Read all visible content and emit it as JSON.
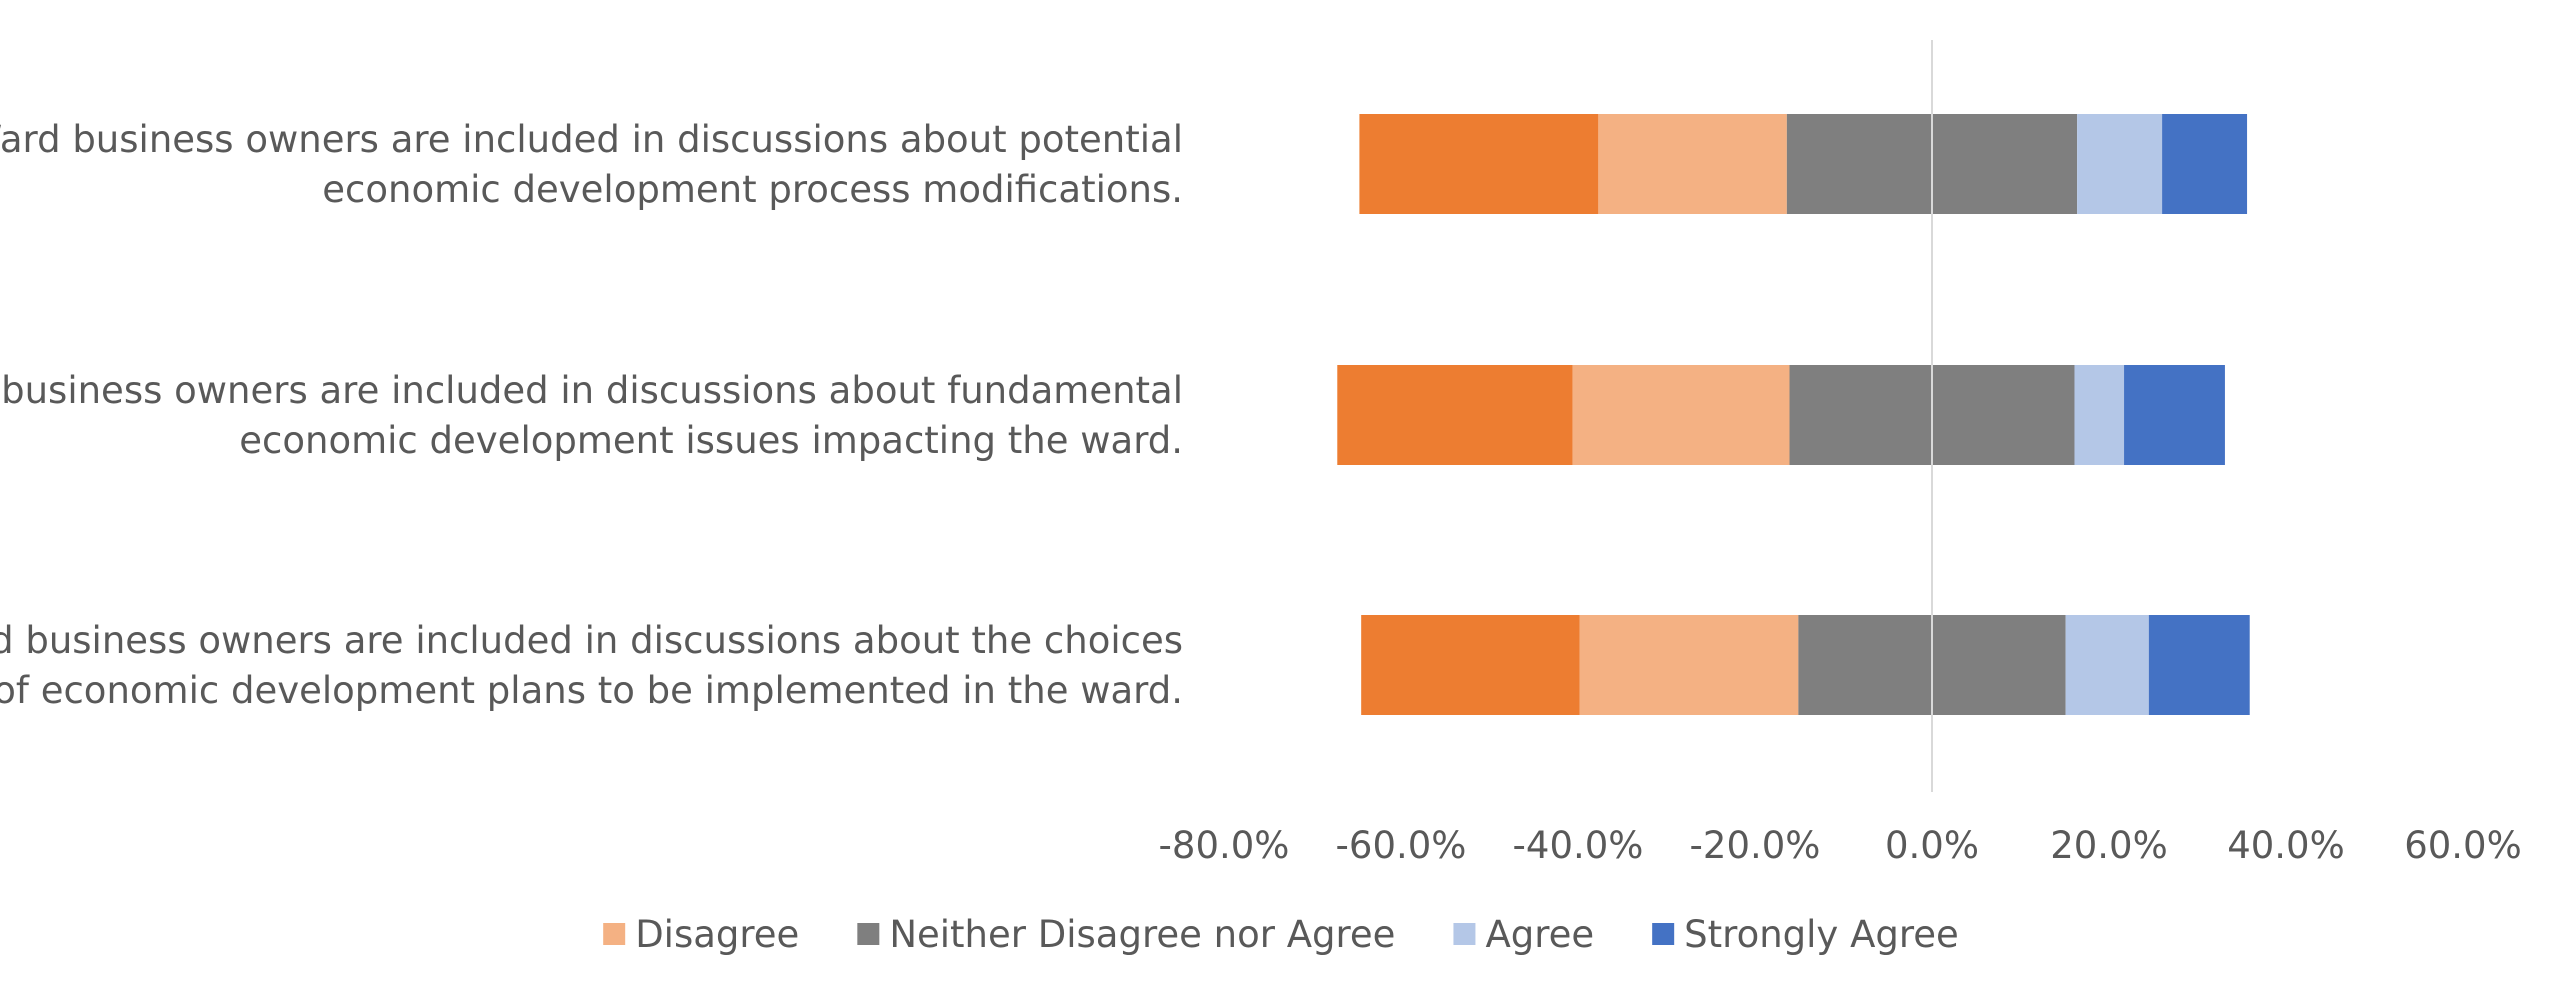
{
  "chart_data": {
    "type": "bar",
    "orientation": "horizontal",
    "stacked": "diverging",
    "title": "",
    "xlabel": "",
    "ylabel": "",
    "xlim": [
      -0.8,
      0.6
    ],
    "xticks": [
      -0.8,
      -0.6,
      -0.4,
      -0.2,
      0.0,
      0.2,
      0.4,
      0.6
    ],
    "xtick_labels": [
      "-80.0%",
      "-60.0%",
      "-40.0%",
      "-20.0%",
      "0.0%",
      "20.0%",
      "40.0%",
      "60.0%"
    ],
    "grid": false,
    "legend_position": "bottom",
    "categories": [
      [
        "Ward business owners are included in discussions about potential",
        "economic development process modifications."
      ],
      [
        "Ward business owners are included in discussions about fundamental",
        "economic development issues impacting the ward."
      ],
      [
        "Ward business owners are included in discussions about the choices",
        "of economic development plans to be implemented in the ward."
      ]
    ],
    "series": [
      {
        "name": "",
        "color": "#ED7D31",
        "values": [
          [
            -0.647,
            -0.377
          ],
          [
            -0.672,
            -0.406
          ],
          [
            -0.645,
            -0.398
          ]
        ]
      },
      {
        "name": "Disagree",
        "color": "#F4B183",
        "values": [
          [
            -0.377,
            -0.164
          ],
          [
            -0.406,
            -0.161
          ],
          [
            -0.398,
            -0.151
          ]
        ]
      },
      {
        "name": "Neither Disagree nor Agree",
        "color": "#7F7F7F",
        "values": [
          [
            -0.164,
            0.164
          ],
          [
            -0.161,
            0.161
          ],
          [
            -0.151,
            0.151
          ]
        ]
      },
      {
        "name": "Agree",
        "color": "#B4C7E7",
        "values": [
          [
            0.164,
            0.26
          ],
          [
            0.161,
            0.217
          ],
          [
            0.151,
            0.245
          ]
        ]
      },
      {
        "name": "Strongly Agree",
        "color": "#4472C4",
        "values": [
          [
            0.26,
            0.356
          ],
          [
            0.217,
            0.331
          ],
          [
            0.245,
            0.359
          ]
        ]
      }
    ],
    "zero_line_color": "#D9D9D9"
  }
}
